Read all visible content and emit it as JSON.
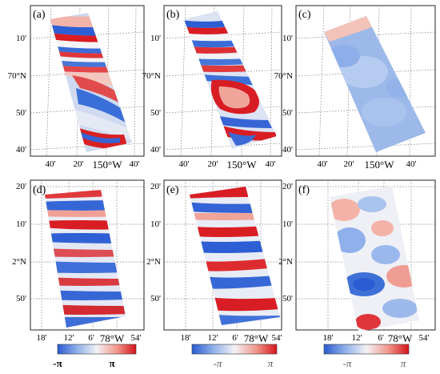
{
  "colors": {
    "blue": "#3b6fd6",
    "light_blue": "#a9c4ef",
    "white": "#f4f4f6",
    "light_red": "#f2a49a",
    "red": "#d81e24",
    "grid": "#555555"
  },
  "panels": [
    {
      "label": "(a)",
      "y_ticks": [
        "10'",
        "70°N",
        "50'",
        "40'"
      ],
      "x_ticks": [
        "40'",
        "20'",
        "150°W",
        "40'"
      ]
    },
    {
      "label": "(b)",
      "y_ticks": [
        "10'",
        "70°N",
        "50'",
        "40'"
      ],
      "x_ticks": [
        "40'",
        "20'",
        "150°W",
        "40'"
      ]
    },
    {
      "label": "(c)",
      "y_ticks": [
        "10'",
        "70°N",
        "50'",
        "40'"
      ],
      "x_ticks": [
        "40'",
        "20'",
        "150°W",
        "40'"
      ]
    },
    {
      "label": "(d)",
      "y_ticks": [
        "20'",
        "10'",
        "2°N",
        "50'"
      ],
      "x_ticks": [
        "18'",
        "12'",
        "6'",
        "78°W",
        "54'"
      ]
    },
    {
      "label": "(e)",
      "y_ticks": [
        "20'",
        "10'",
        "2°N",
        "50'"
      ],
      "x_ticks": [
        "18'",
        "12'",
        "6'",
        "78°W",
        "54'"
      ]
    },
    {
      "label": "(f)",
      "y_ticks": [
        "20'",
        "10'",
        "2°N",
        "50'"
      ],
      "x_ticks": [
        "18'",
        "12'",
        "6'",
        "78°W",
        "54'"
      ]
    }
  ],
  "colorbars": [
    {
      "min_label": "-π",
      "max_label": "π"
    },
    {
      "min_label": "-π",
      "max_label": "π"
    },
    {
      "min_label": "-π",
      "max_label": "π"
    }
  ]
}
